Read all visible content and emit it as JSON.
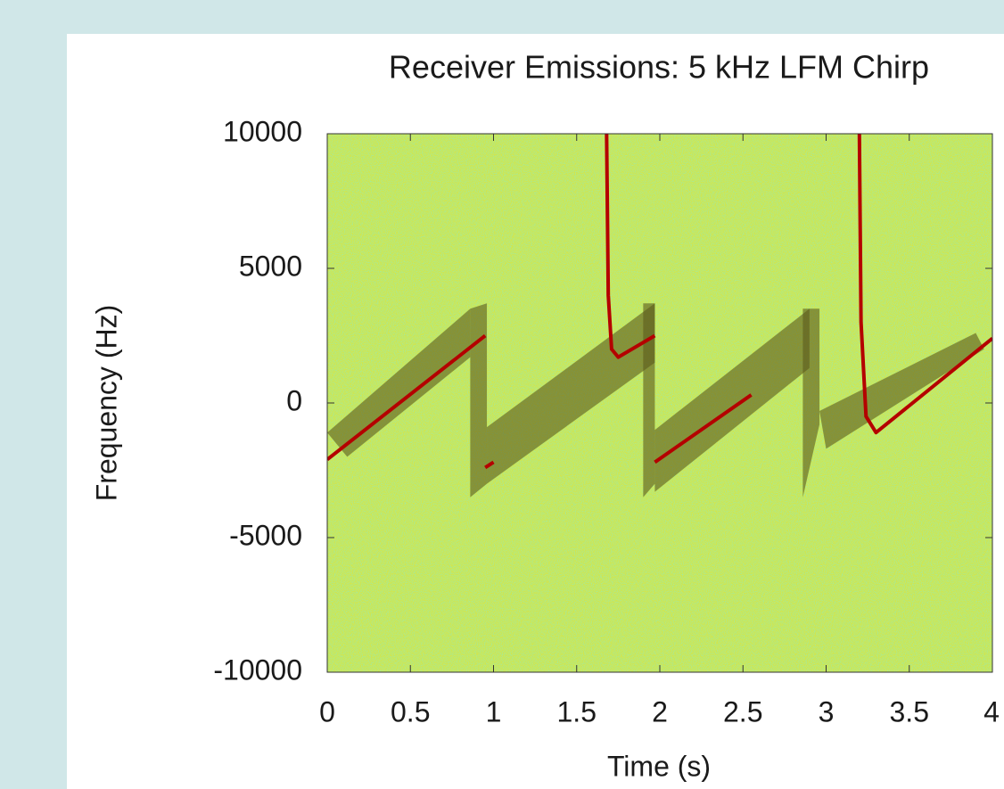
{
  "chart_data": {
    "type": "spectrogram",
    "title": "Receiver Emissions: 5 kHz LFM Chirp",
    "x_label": "Time (s)",
    "y_label": "Frequency (Hz)",
    "xlim": [
      0,
      4
    ],
    "ylim": [
      -10000,
      10000
    ],
    "xticks": [
      0,
      0.5,
      1,
      1.5,
      2,
      2.5,
      3,
      3.5,
      4
    ],
    "yticks": [
      -10000,
      -5000,
      0,
      5000,
      10000
    ],
    "field_color": "#d3e64a",
    "band_color": "#5b5a1c",
    "series": [
      {
        "color": "#b40000",
        "x": [
          0,
          0.95
        ],
        "values": [
          -2100,
          2500
        ]
      },
      {
        "color": "#b40000",
        "x": [
          0.95,
          1.0
        ],
        "values": [
          -2400,
          -2200
        ]
      },
      {
        "color": "#b40000",
        "x": [
          1.68,
          1.69,
          1.71,
          1.75,
          1.97
        ],
        "values": [
          10000,
          4000,
          2000,
          1700,
          2500
        ]
      },
      {
        "color": "#b40000",
        "x": [
          1.97,
          2.55
        ],
        "values": [
          -2200,
          300
        ]
      },
      {
        "color": "#b40000",
        "x": [
          3.2,
          3.21,
          3.24,
          3.3,
          4.0
        ],
        "values": [
          10000,
          3000,
          -500,
          -1100,
          2400
        ]
      }
    ],
    "bands": [
      {
        "x": [
          0.0,
          0.86,
          0.86,
          0.12
        ],
        "y": [
          -1100,
          3500,
          1700,
          -2000
        ]
      },
      {
        "x": [
          0.86,
          0.96,
          0.96,
          0.86
        ],
        "y": [
          3500,
          3700,
          -3000,
          -3500
        ]
      },
      {
        "x": [
          0.96,
          1.97,
          1.97,
          0.96
        ],
        "y": [
          -900,
          3700,
          1500,
          -3000
        ]
      },
      {
        "x": [
          1.9,
          1.97,
          1.97,
          1.9
        ],
        "y": [
          3700,
          3700,
          -3000,
          -3500
        ]
      },
      {
        "x": [
          1.97,
          2.9,
          2.9,
          1.97
        ],
        "y": [
          -1000,
          3500,
          1300,
          -3300
        ]
      },
      {
        "x": [
          2.86,
          2.96,
          2.96,
          2.86
        ],
        "y": [
          3500,
          3500,
          -800,
          -3500
        ]
      },
      {
        "x": [
          2.96,
          3.9,
          3.95,
          3.0
        ],
        "y": [
          -300,
          2600,
          2000,
          -1700
        ]
      }
    ]
  }
}
